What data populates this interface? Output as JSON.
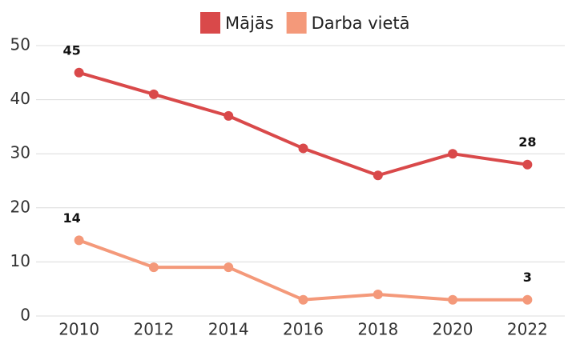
{
  "chart_data": {
    "type": "line",
    "categories": [
      "2010",
      "2012",
      "2014",
      "2016",
      "2018",
      "2020",
      "2022"
    ],
    "series": [
      {
        "name": "Mājās",
        "color": "#d9494a",
        "values": [
          45,
          41,
          37,
          31,
          26,
          30,
          28
        ],
        "value_labels": [
          "45",
          null,
          null,
          null,
          null,
          null,
          "28"
        ]
      },
      {
        "name": "Darba vietā",
        "color": "#f4997a",
        "values": [
          14,
          9,
          9,
          3,
          4,
          3,
          3
        ],
        "value_labels": [
          "14",
          null,
          null,
          null,
          null,
          null,
          "3"
        ]
      }
    ],
    "ylim": [
      0,
      50
    ],
    "yticks": [
      0,
      10,
      20,
      30,
      40,
      50
    ],
    "grid": true,
    "legend": "top"
  }
}
